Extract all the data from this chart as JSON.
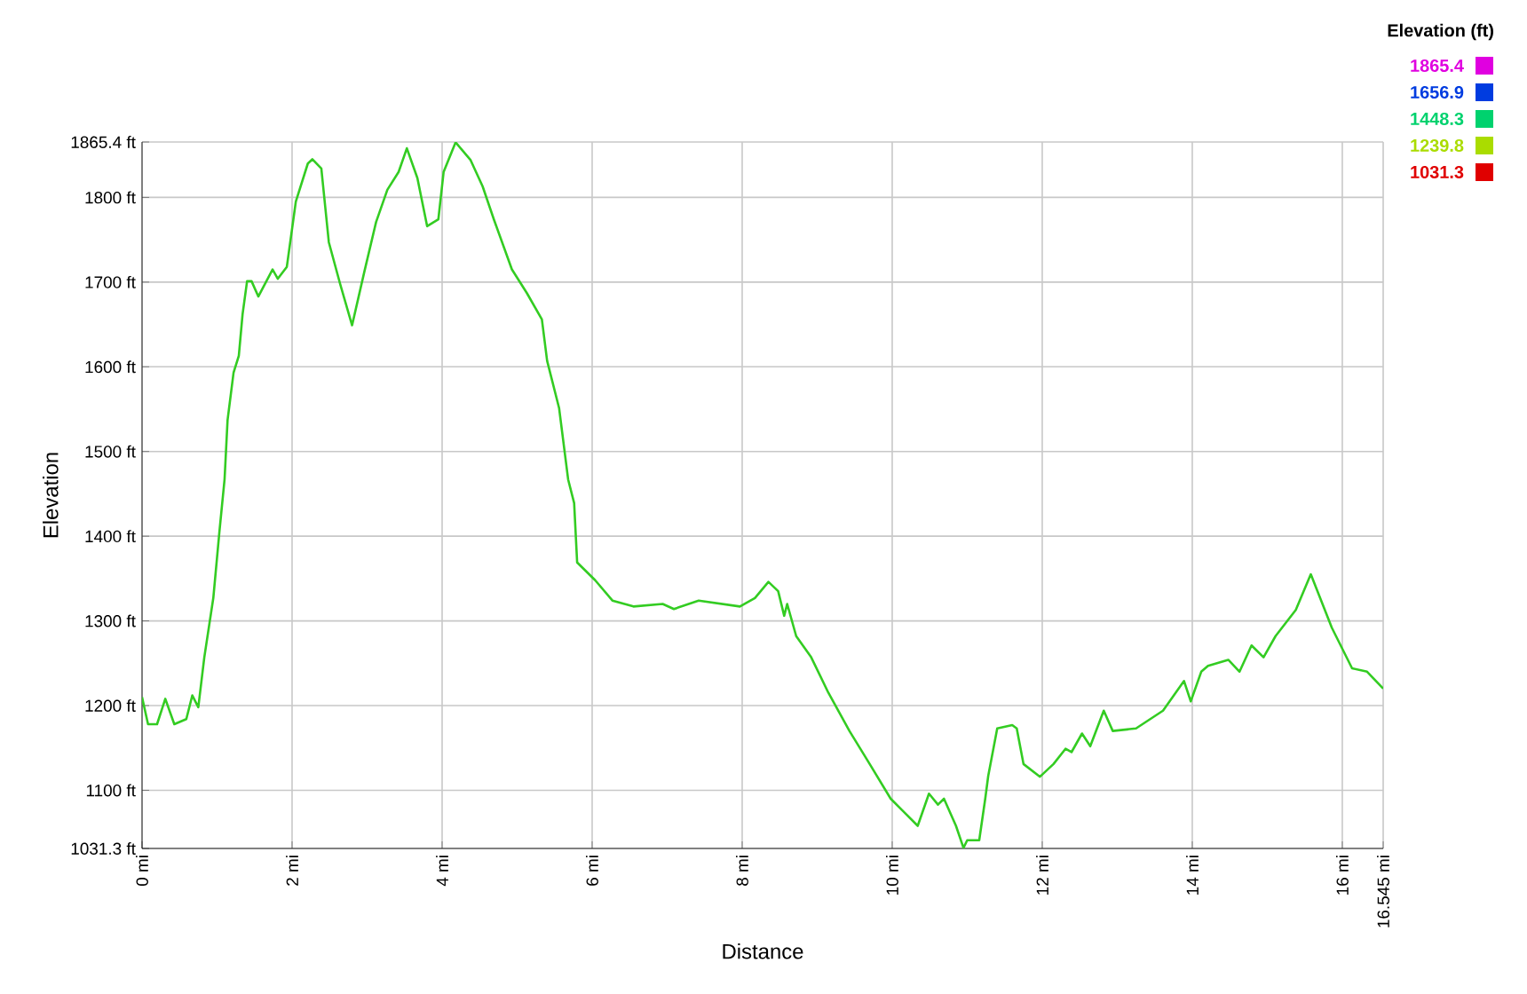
{
  "chart_data": {
    "type": "line",
    "xlabel": "Distance",
    "ylabel": "Elevation",
    "x": [
      0,
      0.08,
      0.2,
      0.31,
      0.43,
      0.59,
      0.67,
      0.75,
      0.83,
      0.95,
      1.03,
      1.1,
      1.14,
      1.22,
      1.29,
      1.34,
      1.4,
      1.46,
      1.55,
      1.74,
      1.81,
      1.93,
      2.05,
      2.21,
      2.27,
      2.39,
      2.49,
      2.64,
      2.8,
      2.96,
      3.12,
      3.27,
      3.42,
      3.53,
      3.67,
      3.8,
      3.95,
      4.02,
      4.18,
      4.38,
      4.54,
      4.69,
      4.93,
      5.13,
      5.33,
      5.4,
      5.56,
      5.68,
      5.76,
      5.8,
      6.04,
      6.27,
      6.55,
      6.94,
      7.09,
      7.42,
      7.97,
      8.17,
      8.35,
      8.48,
      8.56,
      8.6,
      8.72,
      8.92,
      9.15,
      9.43,
      9.7,
      9.98,
      10.34,
      10.49,
      10.61,
      10.69,
      10.85,
      10.95,
      11.0,
      11.16,
      11.24,
      11.28,
      11.4,
      11.6,
      11.66,
      11.75,
      11.97,
      12.15,
      12.31,
      12.39,
      12.53,
      12.64,
      12.82,
      12.94,
      13.25,
      13.61,
      13.89,
      13.98,
      14.12,
      14.21,
      14.48,
      14.63,
      14.79,
      14.95,
      15.11,
      15.38,
      15.58,
      15.86,
      16.13,
      16.33,
      16.545
    ],
    "values": [
      1210,
      1178,
      1178,
      1208,
      1178,
      1184,
      1212,
      1198,
      1257,
      1327,
      1404,
      1467,
      1537,
      1593,
      1613,
      1662,
      1701,
      1701,
      1683,
      1715,
      1704,
      1718,
      1795,
      1840,
      1845,
      1834,
      1747,
      1698,
      1649,
      1711,
      1771,
      1809,
      1830,
      1858,
      1823,
      1766,
      1774,
      1830,
      1865,
      1844,
      1813,
      1774,
      1715,
      1687,
      1656,
      1607,
      1551,
      1467,
      1439,
      1369,
      1348,
      1324,
      1317,
      1320,
      1314,
      1324,
      1317,
      1327,
      1346,
      1335,
      1306,
      1320,
      1282,
      1257,
      1215,
      1170,
      1131,
      1090,
      1058,
      1096,
      1083,
      1090,
      1058,
      1032,
      1041,
      1041,
      1090,
      1117,
      1173,
      1177,
      1173,
      1131,
      1116,
      1131,
      1149,
      1145,
      1167,
      1152,
      1194,
      1170,
      1173,
      1194,
      1229,
      1205,
      1240,
      1247,
      1254,
      1240,
      1271,
      1257,
      1282,
      1313,
      1355,
      1292,
      1244,
      1240,
      1220
    ],
    "xlim": [
      0,
      16.545
    ],
    "ylim": [
      1031.3,
      1865.4
    ],
    "xticks": [
      {
        "value": 0,
        "label": "0 mi"
      },
      {
        "value": 2,
        "label": "2 mi"
      },
      {
        "value": 4,
        "label": "4 mi"
      },
      {
        "value": 6,
        "label": "6 mi"
      },
      {
        "value": 8,
        "label": "8 mi"
      },
      {
        "value": 10,
        "label": "10 mi"
      },
      {
        "value": 12,
        "label": "12 mi"
      },
      {
        "value": 14,
        "label": "14 mi"
      },
      {
        "value": 16,
        "label": "16 mi"
      },
      {
        "value": 16.545,
        "label": "16.545 mi"
      }
    ],
    "yticks": [
      {
        "value": 1031.3,
        "label": "1031.3 ft"
      },
      {
        "value": 1100,
        "label": "1100 ft"
      },
      {
        "value": 1200,
        "label": "1200 ft"
      },
      {
        "value": 1300,
        "label": "1300 ft"
      },
      {
        "value": 1400,
        "label": "1400 ft"
      },
      {
        "value": 1500,
        "label": "1500 ft"
      },
      {
        "value": 1600,
        "label": "1600 ft"
      },
      {
        "value": 1700,
        "label": "1700 ft"
      },
      {
        "value": 1800,
        "label": "1800 ft"
      },
      {
        "value": 1865.4,
        "label": "1865.4 ft"
      }
    ],
    "annotations": [
      "Elevation (ft)",
      "1865.4",
      "1656.9",
      "1448.3",
      "1239.8",
      "1031.3"
    ],
    "color": "#33cc22",
    "grid": true
  }
}
